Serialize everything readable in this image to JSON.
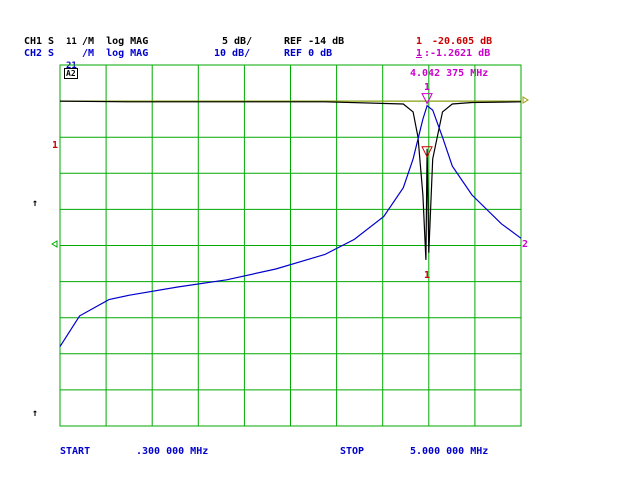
{
  "header": {
    "ch1": {
      "label": "CH1",
      "param": "S",
      "sub": "11",
      "fmt": "/M  log MAG",
      "scale": "5 dB/",
      "ref": "REF -14 dB"
    },
    "ch2": {
      "label": "CH2",
      "param": "S",
      "sub": "21",
      "fmt": "/M  log MAG",
      "scale": "10 dB/",
      "ref": "REF 0 dB"
    },
    "marker1": {
      "num": "1",
      "value": "-20.605 dB"
    },
    "marker2": {
      "num": "1",
      "value": ":-1.2621 dB"
    },
    "marker_freq": "4.042 375 MHz",
    "box_label": "A2"
  },
  "footer": {
    "start_label": "START",
    "start_value": ".300 000 MHz",
    "stop_label": "STOP",
    "stop_value": "5.000 000 MHz"
  },
  "side_labels": {
    "ref1": "1",
    "ref2": "2",
    "arrow": "↑",
    "marker": "1"
  },
  "colors": {
    "grid": "#00aa00",
    "ch1": "#000000",
    "ch2": "#0000cc",
    "marker_red": "#cc0000",
    "marker_mag": "#cc00cc",
    "ref_line": "#999900"
  },
  "chart_data": {
    "type": "line",
    "title": "",
    "x_unit": "MHz",
    "xlim": [
      0.3,
      5.0
    ],
    "grid": true,
    "series": [
      {
        "name": "CH1 S11 log MAG",
        "scale_db_per_div": 5,
        "ref_db": -14,
        "x": [
          0.3,
          1.0,
          2.0,
          3.0,
          3.8,
          3.9,
          3.95,
          4.0,
          4.03,
          4.042375,
          4.06,
          4.1,
          4.2,
          4.3,
          4.5,
          5.0
        ],
        "y": [
          -14.0,
          -14.1,
          -14.1,
          -14.1,
          -14.4,
          -15.5,
          -19.0,
          -27.0,
          -36.0,
          -20.605,
          -35.0,
          -22.0,
          -15.5,
          -14.4,
          -14.2,
          -14.1
        ]
      },
      {
        "name": "CH2 S21 log MAG",
        "scale_db_per_div": 10,
        "ref_db": 0,
        "x": [
          0.3,
          0.5,
          0.8,
          1.0,
          1.5,
          2.0,
          2.5,
          3.0,
          3.3,
          3.6,
          3.8,
          3.9,
          4.0,
          4.042375,
          4.1,
          4.2,
          4.3,
          4.5,
          4.8,
          5.0
        ],
        "y": [
          -68.0,
          -59.5,
          -55.0,
          -53.8,
          -51.5,
          -49.5,
          -46.5,
          -42.5,
          -38.3,
          -32.0,
          -24.0,
          -16.0,
          -5.0,
          -1.2621,
          -2.5,
          -10.0,
          -18.0,
          -26.0,
          -34.0,
          -38.0
        ]
      }
    ]
  }
}
